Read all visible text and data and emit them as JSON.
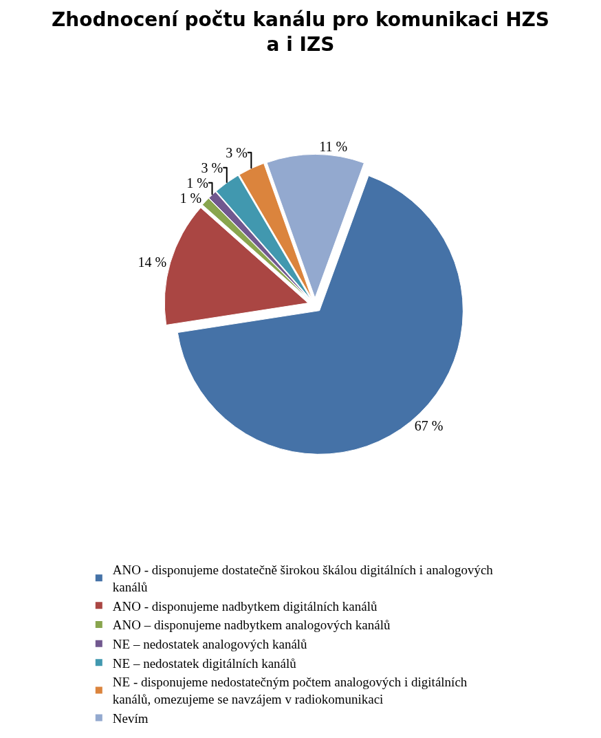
{
  "chart_data": {
    "type": "pie",
    "title": "Zhodnocení počtu kanálu pro komunikaci HZS a i IZS",
    "categories": [
      "ANO - disponujeme dostatečně širokou škálou digitálních i analogových kanálů",
      "ANO - disponujeme nadbytkem digitálních kanálů",
      "ANO – disponujeme nadbytkem analogových kanálů",
      "NE – nedostatek analogových kanálů",
      "NE – nedostatek digitálních kanálů",
      "NE - disponujeme nedostatečným počtem analogových i digitálních kanálů, omezujeme se navzájem v radiokomunikaci",
      "Nevím"
    ],
    "values": [
      67,
      14,
      1,
      1,
      3,
      3,
      11
    ],
    "value_labels": [
      "67 %",
      "14 %",
      "1 %",
      "1 %",
      "3 %",
      "3 %",
      "11 %"
    ],
    "colors": [
      "#4572a7",
      "#aa4643",
      "#89a54e",
      "#71588f",
      "#4198af",
      "#db843d",
      "#93a9cf"
    ],
    "legend": "bottom"
  }
}
